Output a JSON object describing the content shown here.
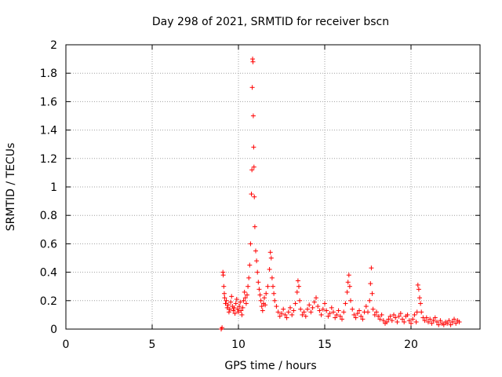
{
  "chart_data": {
    "type": "scatter",
    "title": "Day 298 of 2021, SRMTID for receiver bscn",
    "xlabel": "GPS time / hours",
    "ylabel": "SRMTID / TECUs",
    "xlim": [
      0,
      24
    ],
    "ylim": [
      0,
      2
    ],
    "xticks": [
      0,
      5,
      10,
      15,
      20
    ],
    "yticks": [
      0,
      0.2,
      0.4,
      0.6,
      0.8,
      1,
      1.2,
      1.4,
      1.6,
      1.8,
      2
    ],
    "grid": true,
    "marker": "+",
    "color": "#ff0000",
    "series": [
      {
        "name": "SRMTID",
        "points": [
          [
            9.0,
            0.0
          ],
          [
            9.05,
            0.01
          ],
          [
            9.1,
            0.4
          ],
          [
            9.12,
            0.38
          ],
          [
            9.15,
            0.3
          ],
          [
            9.18,
            0.25
          ],
          [
            9.2,
            0.22
          ],
          [
            9.25,
            0.18
          ],
          [
            9.3,
            0.2
          ],
          [
            9.35,
            0.15
          ],
          [
            9.4,
            0.17
          ],
          [
            9.45,
            0.12
          ],
          [
            9.5,
            0.14
          ],
          [
            9.55,
            0.19
          ],
          [
            9.6,
            0.23
          ],
          [
            9.65,
            0.16
          ],
          [
            9.7,
            0.13
          ],
          [
            9.75,
            0.15
          ],
          [
            9.8,
            0.11
          ],
          [
            9.85,
            0.18
          ],
          [
            9.9,
            0.21
          ],
          [
            9.95,
            0.14
          ],
          [
            10.0,
            0.12
          ],
          [
            10.05,
            0.16
          ],
          [
            10.1,
            0.19
          ],
          [
            10.15,
            0.13
          ],
          [
            10.2,
            0.1
          ],
          [
            10.25,
            0.15
          ],
          [
            10.3,
            0.2
          ],
          [
            10.35,
            0.26
          ],
          [
            10.4,
            0.22
          ],
          [
            10.45,
            0.18
          ],
          [
            10.5,
            0.24
          ],
          [
            10.55,
            0.3
          ],
          [
            10.6,
            0.36
          ],
          [
            10.65,
            0.45
          ],
          [
            10.7,
            0.6
          ],
          [
            10.75,
            0.95
          ],
          [
            10.78,
            1.12
          ],
          [
            10.8,
            1.7
          ],
          [
            10.82,
            1.9
          ],
          [
            10.84,
            1.88
          ],
          [
            10.86,
            1.5
          ],
          [
            10.88,
            1.28
          ],
          [
            10.9,
            1.14
          ],
          [
            10.92,
            0.93
          ],
          [
            10.95,
            0.72
          ],
          [
            11.0,
            0.55
          ],
          [
            11.05,
            0.48
          ],
          [
            11.1,
            0.4
          ],
          [
            11.15,
            0.33
          ],
          [
            11.2,
            0.28
          ],
          [
            11.25,
            0.24
          ],
          [
            11.3,
            0.2
          ],
          [
            11.35,
            0.16
          ],
          [
            11.4,
            0.13
          ],
          [
            11.45,
            0.18
          ],
          [
            11.5,
            0.22
          ],
          [
            11.55,
            0.17
          ],
          [
            11.6,
            0.25
          ],
          [
            11.7,
            0.3
          ],
          [
            11.8,
            0.42
          ],
          [
            11.85,
            0.54
          ],
          [
            11.9,
            0.5
          ],
          [
            11.95,
            0.36
          ],
          [
            12.0,
            0.3
          ],
          [
            12.05,
            0.25
          ],
          [
            12.1,
            0.2
          ],
          [
            12.2,
            0.16
          ],
          [
            12.3,
            0.12
          ],
          [
            12.4,
            0.09
          ],
          [
            12.5,
            0.11
          ],
          [
            12.6,
            0.14
          ],
          [
            12.7,
            0.1
          ],
          [
            12.8,
            0.08
          ],
          [
            12.9,
            0.12
          ],
          [
            13.0,
            0.15
          ],
          [
            13.1,
            0.1
          ],
          [
            13.2,
            0.13
          ],
          [
            13.3,
            0.18
          ],
          [
            13.4,
            0.26
          ],
          [
            13.45,
            0.34
          ],
          [
            13.5,
            0.3
          ],
          [
            13.55,
            0.2
          ],
          [
            13.6,
            0.14
          ],
          [
            13.7,
            0.1
          ],
          [
            13.8,
            0.12
          ],
          [
            13.9,
            0.09
          ],
          [
            14.0,
            0.14
          ],
          [
            14.1,
            0.17
          ],
          [
            14.2,
            0.12
          ],
          [
            14.3,
            0.15
          ],
          [
            14.4,
            0.19
          ],
          [
            14.5,
            0.22
          ],
          [
            14.6,
            0.16
          ],
          [
            14.7,
            0.13
          ],
          [
            14.8,
            0.1
          ],
          [
            14.9,
            0.14
          ],
          [
            15.0,
            0.18
          ],
          [
            15.1,
            0.13
          ],
          [
            15.2,
            0.09
          ],
          [
            15.3,
            0.11
          ],
          [
            15.4,
            0.15
          ],
          [
            15.5,
            0.12
          ],
          [
            15.6,
            0.08
          ],
          [
            15.7,
            0.1
          ],
          [
            15.8,
            0.13
          ],
          [
            15.9,
            0.09
          ],
          [
            16.0,
            0.07
          ],
          [
            16.1,
            0.12
          ],
          [
            16.2,
            0.18
          ],
          [
            16.3,
            0.26
          ],
          [
            16.35,
            0.33
          ],
          [
            16.4,
            0.38
          ],
          [
            16.45,
            0.3
          ],
          [
            16.5,
            0.2
          ],
          [
            16.6,
            0.14
          ],
          [
            16.7,
            0.1
          ],
          [
            16.8,
            0.08
          ],
          [
            16.9,
            0.11
          ],
          [
            17.0,
            0.13
          ],
          [
            17.1,
            0.09
          ],
          [
            17.2,
            0.07
          ],
          [
            17.3,
            0.12
          ],
          [
            17.4,
            0.16
          ],
          [
            17.5,
            0.12
          ],
          [
            17.6,
            0.2
          ],
          [
            17.65,
            0.32
          ],
          [
            17.7,
            0.43
          ],
          [
            17.75,
            0.25
          ],
          [
            17.8,
            0.14
          ],
          [
            17.9,
            0.1
          ],
          [
            18.0,
            0.12
          ],
          [
            18.1,
            0.09
          ],
          [
            18.2,
            0.07
          ],
          [
            18.3,
            0.1
          ],
          [
            18.4,
            0.06
          ],
          [
            18.5,
            0.04
          ],
          [
            18.6,
            0.05
          ],
          [
            18.7,
            0.07
          ],
          [
            18.8,
            0.09
          ],
          [
            18.9,
            0.06
          ],
          [
            19.0,
            0.1
          ],
          [
            19.1,
            0.08
          ],
          [
            19.2,
            0.05
          ],
          [
            19.3,
            0.09
          ],
          [
            19.4,
            0.11
          ],
          [
            19.5,
            0.07
          ],
          [
            19.6,
            0.05
          ],
          [
            19.7,
            0.09
          ],
          [
            19.8,
            0.1
          ],
          [
            19.9,
            0.06
          ],
          [
            20.0,
            0.04
          ],
          [
            20.1,
            0.07
          ],
          [
            20.2,
            0.1
          ],
          [
            20.3,
            0.05
          ],
          [
            20.35,
            0.12
          ],
          [
            20.4,
            0.31
          ],
          [
            20.45,
            0.28
          ],
          [
            20.5,
            0.22
          ],
          [
            20.55,
            0.18
          ],
          [
            20.6,
            0.12
          ],
          [
            20.7,
            0.08
          ],
          [
            20.8,
            0.06
          ],
          [
            20.9,
            0.08
          ],
          [
            21.0,
            0.05
          ],
          [
            21.1,
            0.07
          ],
          [
            21.2,
            0.04
          ],
          [
            21.3,
            0.06
          ],
          [
            21.4,
            0.08
          ],
          [
            21.5,
            0.05
          ],
          [
            21.6,
            0.03
          ],
          [
            21.7,
            0.06
          ],
          [
            21.8,
            0.04
          ],
          [
            21.9,
            0.03
          ],
          [
            22.0,
            0.05
          ],
          [
            22.1,
            0.04
          ],
          [
            22.2,
            0.06
          ],
          [
            22.3,
            0.03
          ],
          [
            22.4,
            0.05
          ],
          [
            22.5,
            0.07
          ],
          [
            22.6,
            0.04
          ],
          [
            22.7,
            0.06
          ],
          [
            22.8,
            0.05
          ]
        ]
      }
    ]
  }
}
